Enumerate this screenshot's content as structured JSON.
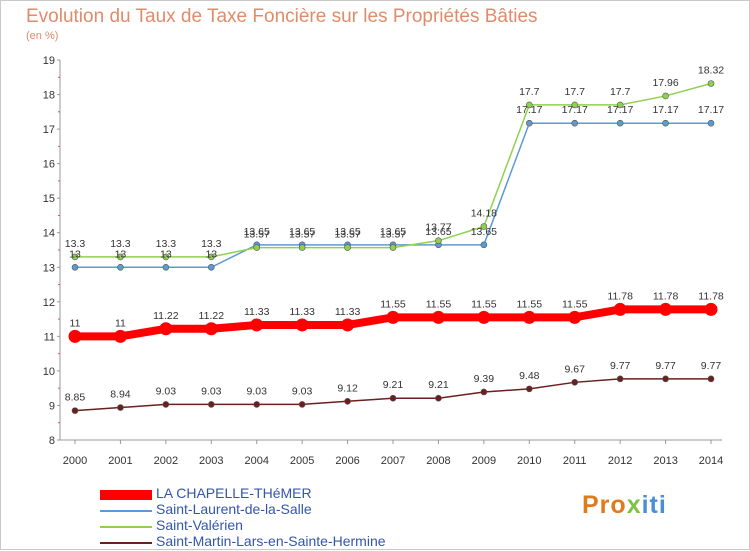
{
  "title": "Evolution du Taux de Taxe Foncière sur les Propriétés Bâties",
  "subtitle": "(en %)",
  "logo": {
    "p": "Pro",
    "x": "x",
    "rest": "iti"
  },
  "chart_data": {
    "type": "line",
    "title": "Evolution du Taux de Taxe Foncière sur les Propriétés Bâties",
    "ylabel": "(en %)",
    "xlabel": "",
    "x": [
      2000,
      2001,
      2002,
      2003,
      2004,
      2005,
      2006,
      2007,
      2008,
      2009,
      2010,
      2011,
      2012,
      2013,
      2014
    ],
    "ylim": [
      8,
      19
    ],
    "yticks": [
      8,
      9,
      10,
      11,
      12,
      13,
      14,
      15,
      16,
      17,
      18,
      19
    ],
    "grid": false,
    "legend_position": "bottom-left",
    "series": [
      {
        "name": "LA CHAPELLE-THéMER",
        "color": "#ff0000",
        "thick": true,
        "values": [
          11,
          11,
          11.22,
          11.22,
          11.33,
          11.33,
          11.33,
          11.55,
          11.55,
          11.55,
          11.55,
          11.55,
          11.78,
          11.78,
          11.78
        ],
        "labels": [
          "11",
          "11",
          "11.22",
          "11.22",
          "11.33",
          "11.33",
          "11.33",
          "11.55",
          "11.55",
          "11.55",
          "11.55",
          "11.55",
          "11.78",
          "11.78",
          "11.78"
        ]
      },
      {
        "name": "Saint-Laurent-de-la-Salle",
        "color": "#5b9bd5",
        "thick": false,
        "values": [
          13,
          13,
          13,
          13,
          13.65,
          13.65,
          13.65,
          13.65,
          13.65,
          13.65,
          17.17,
          17.17,
          17.17,
          17.17,
          17.17
        ],
        "labels": [
          "13",
          "13",
          "13",
          "13",
          "13.65",
          "13.65",
          "13.65",
          "13.65",
          "13.65",
          "13.65",
          "17.17",
          "17.17",
          "17.17",
          "17.17",
          "17.17"
        ]
      },
      {
        "name": "Saint-Valérien",
        "color": "#8fd14f",
        "thick": false,
        "values": [
          13.3,
          13.3,
          13.3,
          13.3,
          13.57,
          13.57,
          13.57,
          13.57,
          13.77,
          14.18,
          17.7,
          17.7,
          17.7,
          17.96,
          18.32
        ],
        "labels": [
          "13.3",
          "13.3",
          "13.3",
          "13.3",
          "13.57",
          "13.57",
          "13.57",
          "13.57",
          "13.77",
          "14.18",
          "17.7",
          "17.7",
          "17.7",
          "17.96",
          "18.32"
        ]
      },
      {
        "name": "Saint-Martin-Lars-en-Sainte-Hermine",
        "color": "#6b1f1f",
        "thick": false,
        "values": [
          8.85,
          8.94,
          9.03,
          9.03,
          9.03,
          9.03,
          9.12,
          9.21,
          9.21,
          9.39,
          9.48,
          9.67,
          9.77,
          9.77,
          9.77
        ],
        "labels": [
          "8.85",
          "8.94",
          "9.03",
          "9.03",
          "9.03",
          "9.03",
          "9.12",
          "9.21",
          "9.21",
          "9.39",
          "9.48",
          "9.67",
          "9.77",
          "9.77",
          "9.77"
        ]
      }
    ]
  }
}
